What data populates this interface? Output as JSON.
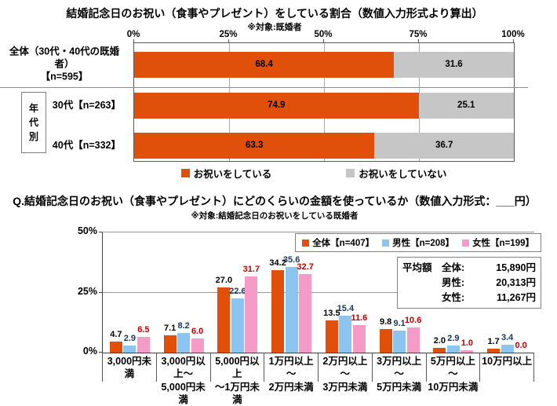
{
  "chart_data": [
    {
      "type": "bar-horizontal-stacked",
      "title": "結婚記念日のお祝い（食事やプレゼント）をしている割合（数値入力形式より算出）",
      "subtitle": "※対象:既婚者",
      "axis_ticks": [
        "0%",
        "25%",
        "50%",
        "75%",
        "100%"
      ],
      "xlim": [
        0,
        100
      ],
      "group_label": "年代別",
      "rows": [
        {
          "label_lines": [
            "全体（30代・40代の既婚者）",
            "【n=595】"
          ]
        },
        {
          "label_lines": [
            "30代【n=263】"
          ]
        },
        {
          "label_lines": [
            "40代【n=332】"
          ]
        }
      ],
      "series": [
        {
          "name": "お祝いをしている",
          "color": "#E0500A",
          "values": [
            68.4,
            74.9,
            63.3
          ]
        },
        {
          "name": "お祝いをしていない",
          "color": "#C6C6C6",
          "values": [
            31.6,
            25.1,
            36.7
          ]
        }
      ],
      "legend_position": "bottom",
      "grid": true
    },
    {
      "type": "bar",
      "title": "Q.結婚記念日のお祝い（食事やプレゼント）にどのくらいの金額を使っているか（数値入力形式：___円）",
      "subtitle": "※対象:結婚記念日のお祝いをしている既婚者",
      "ylim": [
        0,
        50
      ],
      "yticks": [
        "50%",
        "25%",
        "0%"
      ],
      "grid": true,
      "legend_position": "top-right",
      "categories_lines": [
        [
          "3,000円未満"
        ],
        [
          "3,000円以上～",
          "5,000円未満"
        ],
        [
          "5,000円以上",
          "～1万円未満"
        ],
        [
          "1万円以上～",
          "2万円未満"
        ],
        [
          "2万円以上～",
          "3万円未満"
        ],
        [
          "3万円以上～",
          "5万円未満"
        ],
        [
          "5万円以上～",
          "10万円未満"
        ],
        [
          "10万円以上"
        ]
      ],
      "series": [
        {
          "name": "全体【n=407】",
          "color": "#E0500A",
          "label_color": "#000000",
          "values": [
            4.7,
            7.1,
            27.0,
            34.2,
            13.5,
            9.8,
            2.0,
            1.7
          ]
        },
        {
          "name": "男性【n=208】",
          "color": "#8CC6F0",
          "label_color": "#17375E",
          "values": [
            2.9,
            8.2,
            22.6,
            35.6,
            15.4,
            9.1,
            2.9,
            3.4
          ]
        },
        {
          "name": "女性【n=199】",
          "color": "#F59BC8",
          "label_color": "#C00000",
          "values": [
            6.5,
            6.0,
            31.7,
            32.7,
            11.6,
            10.6,
            1.0,
            0.0
          ]
        }
      ],
      "average_box": {
        "title": "平均額",
        "rows": [
          {
            "label": "全体:",
            "value": "15,890円"
          },
          {
            "label": "男性:",
            "value": "20,313円"
          },
          {
            "label": "女性:",
            "value": "11,267円"
          }
        ]
      }
    }
  ]
}
